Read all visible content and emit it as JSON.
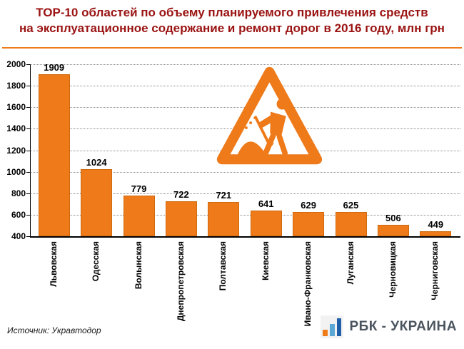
{
  "title": {
    "line1": "ТОР-10 областей по объему планируемого привлечения средств",
    "line2": "на эксплуатационное содержание и ремонт дорог в 2016 году, млн грн"
  },
  "source": "Источник: Укравтодор",
  "logo": {
    "text": "РБК - УКРАИНА"
  },
  "colors": {
    "title": "#9A1312",
    "accent": "#EE7A1A",
    "bar": "#EE7A1A",
    "grid": "#8A8A8A",
    "logo_text": "#4A545E",
    "logo_blue": "#1F5FA8",
    "logo_lightblue": "#5BA7D6",
    "logo_orange": "#EE7A1A"
  },
  "chart_data": {
    "type": "bar",
    "title": "ТОР-10 областей по объему планируемого привлечения средств на эксплуатационное содержание и ремонт дорог в 2016 году, млн грн",
    "categories": [
      "Львовская",
      "Одесская",
      "Волынская",
      "Днепропетровская",
      "Полтавская",
      "Киевская",
      "Ивано-Франковская",
      "Луганская",
      "Черновицкая",
      "Черниговская"
    ],
    "values": [
      1909,
      1024,
      779,
      722,
      721,
      641,
      629,
      625,
      506,
      449
    ],
    "xlabel": "",
    "ylabel": "млн грн",
    "ylim": [
      400,
      2000
    ],
    "yticks": [
      400,
      600,
      800,
      1000,
      1200,
      1400,
      1600,
      1800,
      2000
    ],
    "grid": "dotted-horizontal",
    "legend": "none",
    "bar_color": "#EE7A1A",
    "value_labels": "above bars",
    "category_label_orientation": "vertical"
  }
}
